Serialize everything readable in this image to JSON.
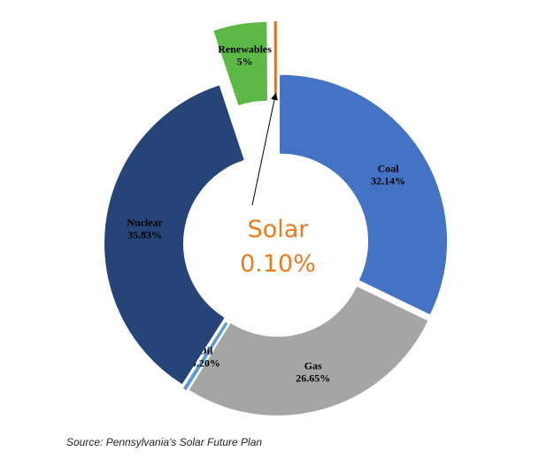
{
  "chart_data": {
    "type": "donut",
    "categories": [
      "Coal",
      "Gas",
      "Oil",
      "Nuclear",
      "Renewables",
      "Solar"
    ],
    "values": [
      32.14,
      26.65,
      0.2,
      35.83,
      5,
      0.1
    ],
    "value_labels": [
      "32.14%",
      "26.65%",
      "0.20%",
      "35.83%",
      "5%",
      "0.10%"
    ],
    "colors": [
      "#4472c4",
      "#a5a5a5",
      "#5b9bd5",
      "#264478",
      "#5cb946",
      "#e0701a"
    ],
    "source": "Source: Pennsylvania's Solar Future Plan"
  }
}
